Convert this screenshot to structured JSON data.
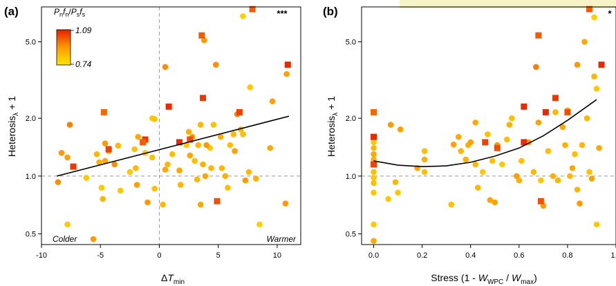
{
  "figure": {
    "colors": {
      "low": "#FFE600",
      "mid": "#FF9A00",
      "high": "#E61E00",
      "axis": "#000000",
      "refline": "#999999"
    },
    "colorbar": {
      "title": "P_n f_n / P_s f_s",
      "max_label": "1.09",
      "min_label": "0.74"
    }
  },
  "chart_data": [
    {
      "type": "scatter",
      "panel": "(a)",
      "xlabel": "ΔT_min",
      "ylabel": "Heterosis_λ + 1",
      "y_scale": "log",
      "xlim": [
        -10,
        12
      ],
      "ylim": [
        0.44,
        7.6
      ],
      "xticks": [
        -10,
        -5,
        0,
        5,
        10
      ],
      "xtick_labels": [
        "-10",
        "-5",
        "0",
        "5",
        "10"
      ],
      "yticks": [
        0.5,
        1.0,
        2.0,
        5.0
      ],
      "ytick_labels": [
        "0.5",
        "1.0",
        "2.0",
        "5.0"
      ],
      "significance": "***",
      "annotations": {
        "left": "Colder",
        "right": "Warmer"
      },
      "reference_lines": {
        "y": 1.0,
        "x": 0
      },
      "fit": {
        "kind": "linear",
        "x": [
          -8.7,
          11
        ],
        "y": [
          1.0,
          2.05
        ]
      },
      "points": [
        {
          "x": -8.6,
          "y": 0.93,
          "c": 0.55
        },
        {
          "x": -8.3,
          "y": 1.32,
          "c": 0.5
        },
        {
          "x": -7.8,
          "y": 1.25,
          "c": 0.45
        },
        {
          "x": -7.6,
          "y": 1.85,
          "c": 0.6
        },
        {
          "x": -7.8,
          "y": 0.56,
          "c": 0.2
        },
        {
          "x": -6.2,
          "y": 0.98,
          "c": 0.2
        },
        {
          "x": -5.1,
          "y": 1.18,
          "c": 0.35
        },
        {
          "x": -4.6,
          "y": 1.48,
          "c": 0.5
        },
        {
          "x": -4.3,
          "y": 1.35,
          "c": 0.45
        },
        {
          "x": -3.5,
          "y": 1.44,
          "c": 0.3
        },
        {
          "x": -3.8,
          "y": 1.15,
          "c": 0.55
        },
        {
          "x": -5.3,
          "y": 1.3,
          "c": 0.3
        },
        {
          "x": -4.6,
          "y": 1.2,
          "c": 0.4
        },
        {
          "x": -4.8,
          "y": 0.76,
          "c": 0.3
        },
        {
          "x": -4.9,
          "y": 0.87,
          "c": 0.2
        },
        {
          "x": -5.6,
          "y": 0.47,
          "c": 0.5
        },
        {
          "x": -3.3,
          "y": 0.84,
          "c": 0.2
        },
        {
          "x": -2.1,
          "y": 1.38,
          "c": 0.25
        },
        {
          "x": -2.0,
          "y": 1.1,
          "c": 0.3
        },
        {
          "x": -1.8,
          "y": 1.6,
          "c": 0.4
        },
        {
          "x": -1.9,
          "y": 0.9,
          "c": 0.45
        },
        {
          "x": -1.2,
          "y": 1.32,
          "c": 0.2
        },
        {
          "x": -1.0,
          "y": 0.73,
          "c": 0.5
        },
        {
          "x": -0.6,
          "y": 1.25,
          "c": 0.25
        },
        {
          "x": -0.6,
          "y": 2.0,
          "c": 0.2
        },
        {
          "x": -0.4,
          "y": 1.98,
          "c": 0.25
        },
        {
          "x": -0.4,
          "y": 0.86,
          "c": 0.25
        },
        {
          "x": 0.3,
          "y": 0.71,
          "c": 0.3
        },
        {
          "x": 0.5,
          "y": 1.08,
          "c": 0.4
        },
        {
          "x": 0.7,
          "y": 1.15,
          "c": 0.3
        },
        {
          "x": 1.1,
          "y": 1.3,
          "c": 0.25
        },
        {
          "x": 1.7,
          "y": 1.07,
          "c": 0.4
        },
        {
          "x": 1.8,
          "y": 0.9,
          "c": 0.3
        },
        {
          "x": 2.3,
          "y": 1.45,
          "c": 0.2
        },
        {
          "x": 2.6,
          "y": 1.28,
          "c": 0.4
        },
        {
          "x": 2.8,
          "y": 1.6,
          "c": 0.5
        },
        {
          "x": 3.0,
          "y": 1.2,
          "c": 0.25
        },
        {
          "x": 3.2,
          "y": 0.96,
          "c": 0.3
        },
        {
          "x": 3.5,
          "y": 1.85,
          "c": 0.3
        },
        {
          "x": 3.7,
          "y": 1.15,
          "c": 0.35
        },
        {
          "x": 3.9,
          "y": 1.0,
          "c": 0.4
        },
        {
          "x": 4.3,
          "y": 1.4,
          "c": 0.2
        },
        {
          "x": 4.4,
          "y": 1.1,
          "c": 0.3
        },
        {
          "x": 4.6,
          "y": 1.85,
          "c": 0.25
        },
        {
          "x": 4.8,
          "y": 3.8,
          "c": 0.55
        },
        {
          "x": 5.3,
          "y": 1.1,
          "c": 0.3
        },
        {
          "x": 5.6,
          "y": 1.0,
          "c": 0.35
        },
        {
          "x": 5.8,
          "y": 0.87,
          "c": 0.25
        },
        {
          "x": 6.3,
          "y": 1.65,
          "c": 0.3
        },
        {
          "x": 6.4,
          "y": 1.35,
          "c": 0.45
        },
        {
          "x": 6.6,
          "y": 2.1,
          "c": 0.55
        },
        {
          "x": 6.9,
          "y": 1.75,
          "c": 0.3
        },
        {
          "x": 7.1,
          "y": 1.65,
          "c": 0.25
        },
        {
          "x": 7.3,
          "y": 0.95,
          "c": 0.5
        },
        {
          "x": 7.6,
          "y": 1.05,
          "c": 0.3
        },
        {
          "x": 7.7,
          "y": 2.9,
          "c": 0.2
        },
        {
          "x": 8.2,
          "y": 0.97,
          "c": 0.35
        },
        {
          "x": 8.5,
          "y": 0.56,
          "c": 0.15
        },
        {
          "x": 9.4,
          "y": 1.4,
          "c": 0.4
        },
        {
          "x": 9.6,
          "y": 2.45,
          "c": 0.45
        },
        {
          "x": 10.8,
          "y": 3.4,
          "c": 0.45
        },
        {
          "x": 10.7,
          "y": 0.72,
          "c": 0.5
        },
        {
          "x": 7.1,
          "y": 6.8,
          "c": 0.15
        },
        {
          "x": 3.8,
          "y": 5.1,
          "c": 0.5
        },
        {
          "x": 0.5,
          "y": 3.7,
          "c": 0.55
        },
        {
          "x": 3.3,
          "y": 1.45,
          "c": 0.3
        },
        {
          "x": 5.2,
          "y": 1.6,
          "c": 0.35
        },
        {
          "x": 6.0,
          "y": 1.45,
          "c": 0.25
        },
        {
          "x": 2.5,
          "y": 1.7,
          "c": 0.35
        },
        {
          "x": -2.5,
          "y": 1.05,
          "c": 0.2
        },
        {
          "x": 3.5,
          "y": 0.71,
          "c": 0.4
        },
        {
          "x": 4.0,
          "y": 1.45,
          "c": 0.5
        }
      ],
      "squares": [
        {
          "x": -7.3,
          "y": 1.12,
          "c": 0.9
        },
        {
          "x": -4.7,
          "y": 2.15,
          "c": 0.7
        },
        {
          "x": -4.3,
          "y": 1.38,
          "c": 0.85
        },
        {
          "x": -1.2,
          "y": 1.55,
          "c": 0.9
        },
        {
          "x": -1.4,
          "y": 1.5,
          "c": 0.75
        },
        {
          "x": 0.8,
          "y": 2.3,
          "c": 0.95
        },
        {
          "x": 1.7,
          "y": 1.5,
          "c": 0.95
        },
        {
          "x": 2.6,
          "y": 1.55,
          "c": 0.8
        },
        {
          "x": 3.6,
          "y": 5.4,
          "c": 0.75
        },
        {
          "x": 3.7,
          "y": 2.55,
          "c": 0.9
        },
        {
          "x": 4.9,
          "y": 0.74,
          "c": 0.8
        },
        {
          "x": 6.8,
          "y": 2.15,
          "c": 0.85
        },
        {
          "x": 7.9,
          "y": 7.4,
          "c": 0.75
        },
        {
          "x": 10.9,
          "y": 3.8,
          "c": 0.95
        }
      ]
    },
    {
      "type": "scatter",
      "panel": "(b)",
      "xlabel": "Stress (1 - W_WPC / W_max)",
      "ylabel": "Heterosis_λ + 1",
      "y_scale": "log",
      "xlim": [
        -0.05,
        1.0
      ],
      "ylim": [
        0.44,
        7.6
      ],
      "xticks": [
        0.0,
        0.2,
        0.4,
        0.6,
        0.8,
        1.0
      ],
      "xtick_labels": [
        "0.0",
        "0.2",
        "0.4",
        "0.6",
        "0.8",
        "1.0"
      ],
      "yticks": [
        0.5,
        1.0,
        2.0,
        5.0
      ],
      "ytick_labels": [
        "0.5",
        "1.0",
        "2.0",
        "5.0"
      ],
      "significance": "*",
      "reference_lines": {
        "y": 1.0
      },
      "fit": {
        "kind": "quadratic",
        "x": [
          0.0,
          0.1,
          0.2,
          0.3,
          0.4,
          0.5,
          0.6,
          0.7,
          0.8,
          0.9,
          0.92
        ],
        "y": [
          1.2,
          1.14,
          1.12,
          1.13,
          1.18,
          1.27,
          1.4,
          1.62,
          1.95,
          2.4,
          2.5
        ]
      },
      "points": [
        {
          "x": 0.0,
          "y": 0.46,
          "c": 0.4
        },
        {
          "x": 0.0,
          "y": 0.56,
          "c": 0.2
        },
        {
          "x": 0.0,
          "y": 0.82,
          "c": 0.2
        },
        {
          "x": 0.0,
          "y": 0.92,
          "c": 0.25
        },
        {
          "x": 0.0,
          "y": 0.98,
          "c": 0.2
        },
        {
          "x": 0.0,
          "y": 1.05,
          "c": 0.25
        },
        {
          "x": 0.0,
          "y": 1.15,
          "c": 0.3
        },
        {
          "x": 0.0,
          "y": 1.22,
          "c": 0.35
        },
        {
          "x": 0.0,
          "y": 1.3,
          "c": 0.4
        },
        {
          "x": 0.0,
          "y": 1.4,
          "c": 0.3
        },
        {
          "x": 0.0,
          "y": 1.5,
          "c": 0.2
        },
        {
          "x": 0.06,
          "y": 0.76,
          "c": 0.2
        },
        {
          "x": 0.07,
          "y": 1.85,
          "c": 0.5
        },
        {
          "x": 0.09,
          "y": 0.93,
          "c": 0.3
        },
        {
          "x": 0.1,
          "y": 0.82,
          "c": 0.2
        },
        {
          "x": 0.11,
          "y": 1.75,
          "c": 0.45
        },
        {
          "x": 0.18,
          "y": 1.1,
          "c": 0.4
        },
        {
          "x": 0.21,
          "y": 1.05,
          "c": 0.25
        },
        {
          "x": 0.21,
          "y": 1.22,
          "c": 0.35
        },
        {
          "x": 0.21,
          "y": 1.35,
          "c": 0.25
        },
        {
          "x": 0.32,
          "y": 0.71,
          "c": 0.25
        },
        {
          "x": 0.33,
          "y": 1.46,
          "c": 0.45
        },
        {
          "x": 0.35,
          "y": 1.6,
          "c": 0.4
        },
        {
          "x": 0.36,
          "y": 1.35,
          "c": 0.3
        },
        {
          "x": 0.38,
          "y": 1.22,
          "c": 0.35
        },
        {
          "x": 0.39,
          "y": 1.45,
          "c": 0.35
        },
        {
          "x": 0.4,
          "y": 1.5,
          "c": 0.45
        },
        {
          "x": 0.42,
          "y": 1.9,
          "c": 0.4
        },
        {
          "x": 0.42,
          "y": 1.15,
          "c": 0.3
        },
        {
          "x": 0.43,
          "y": 0.87,
          "c": 0.3
        },
        {
          "x": 0.45,
          "y": 1.05,
          "c": 0.2
        },
        {
          "x": 0.47,
          "y": 1.65,
          "c": 0.25
        },
        {
          "x": 0.48,
          "y": 0.75,
          "c": 0.4
        },
        {
          "x": 0.49,
          "y": 1.2,
          "c": 0.25
        },
        {
          "x": 0.5,
          "y": 0.73,
          "c": 0.45
        },
        {
          "x": 0.51,
          "y": 1.45,
          "c": 0.5
        },
        {
          "x": 0.53,
          "y": 1.15,
          "c": 0.2
        },
        {
          "x": 0.55,
          "y": 1.55,
          "c": 0.25
        },
        {
          "x": 0.56,
          "y": 1.85,
          "c": 0.35
        },
        {
          "x": 0.57,
          "y": 2.0,
          "c": 0.25
        },
        {
          "x": 0.59,
          "y": 1.0,
          "c": 0.45
        },
        {
          "x": 0.6,
          "y": 0.95,
          "c": 0.35
        },
        {
          "x": 0.61,
          "y": 1.2,
          "c": 0.25
        },
        {
          "x": 0.64,
          "y": 1.5,
          "c": 0.5
        },
        {
          "x": 0.66,
          "y": 1.05,
          "c": 0.3
        },
        {
          "x": 0.67,
          "y": 3.7,
          "c": 0.6
        },
        {
          "x": 0.68,
          "y": 1.9,
          "c": 0.45
        },
        {
          "x": 0.69,
          "y": 0.95,
          "c": 0.2
        },
        {
          "x": 0.7,
          "y": 0.7,
          "c": 0.5
        },
        {
          "x": 0.72,
          "y": 1.35,
          "c": 0.25
        },
        {
          "x": 0.74,
          "y": 1.0,
          "c": 0.35
        },
        {
          "x": 0.75,
          "y": 2.15,
          "c": 0.3
        },
        {
          "x": 0.76,
          "y": 0.95,
          "c": 0.3
        },
        {
          "x": 0.78,
          "y": 1.8,
          "c": 0.4
        },
        {
          "x": 0.79,
          "y": 1.45,
          "c": 0.35
        },
        {
          "x": 0.8,
          "y": 2.2,
          "c": 0.35
        },
        {
          "x": 0.81,
          "y": 1.0,
          "c": 0.3
        },
        {
          "x": 0.82,
          "y": 1.1,
          "c": 0.4
        },
        {
          "x": 0.83,
          "y": 1.3,
          "c": 0.25
        },
        {
          "x": 0.84,
          "y": 0.85,
          "c": 0.3
        },
        {
          "x": 0.84,
          "y": 3.8,
          "c": 0.5
        },
        {
          "x": 0.85,
          "y": 0.72,
          "c": 0.5
        },
        {
          "x": 0.86,
          "y": 1.45,
          "c": 0.3
        },
        {
          "x": 0.87,
          "y": 5.0,
          "c": 0.4
        },
        {
          "x": 0.88,
          "y": 2.0,
          "c": 0.3
        },
        {
          "x": 0.89,
          "y": 1.05,
          "c": 0.25
        },
        {
          "x": 0.9,
          "y": 0.97,
          "c": 0.45
        },
        {
          "x": 0.91,
          "y": 6.7,
          "c": 0.15
        },
        {
          "x": 0.91,
          "y": 3.3,
          "c": 0.3
        },
        {
          "x": 0.92,
          "y": 2.85,
          "c": 0.2
        },
        {
          "x": 0.92,
          "y": 0.56,
          "c": 0.2
        },
        {
          "x": 0.93,
          "y": 1.4,
          "c": 0.4
        }
      ],
      "squares": [
        {
          "x": 0.0,
          "y": 2.15,
          "c": 0.7
        },
        {
          "x": 0.0,
          "y": 1.6,
          "c": 0.95
        },
        {
          "x": 0.0,
          "y": 1.15,
          "c": 0.85
        },
        {
          "x": 0.46,
          "y": 1.5,
          "c": 0.85
        },
        {
          "x": 0.51,
          "y": 1.4,
          "c": 0.8
        },
        {
          "x": 0.62,
          "y": 2.3,
          "c": 0.95
        },
        {
          "x": 0.62,
          "y": 1.5,
          "c": 0.95
        },
        {
          "x": 0.68,
          "y": 5.4,
          "c": 0.75
        },
        {
          "x": 0.71,
          "y": 2.15,
          "c": 0.95
        },
        {
          "x": 0.75,
          "y": 2.55,
          "c": 0.9
        },
        {
          "x": 0.69,
          "y": 0.74,
          "c": 0.8
        },
        {
          "x": 0.8,
          "y": 2.15,
          "c": 0.8
        },
        {
          "x": 0.89,
          "y": 7.4,
          "c": 0.75
        },
        {
          "x": 0.94,
          "y": 3.8,
          "c": 0.95
        }
      ]
    }
  ]
}
